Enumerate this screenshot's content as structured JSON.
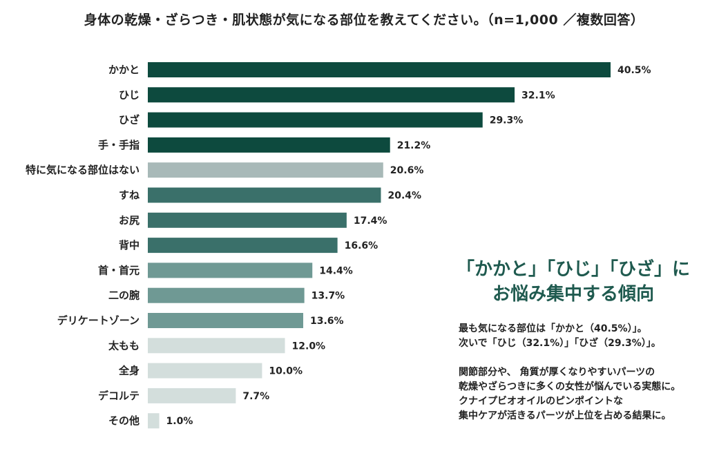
{
  "chart_data": {
    "type": "bar",
    "orientation": "horizontal",
    "title": "身体の乾燥・ざらつき・肌状態が気になる部位を教えてください。（n=1,000 ／複数回答）",
    "categories": [
      "かかと",
      "ひじ",
      "ひざ",
      "手・手指",
      "特に気になる部位はない",
      "すね",
      "お尻",
      "背中",
      "首・首元",
      "二の腕",
      "デリケートゾーン",
      "太もも",
      "全身",
      "デコルテ",
      "その他"
    ],
    "values": [
      40.5,
      32.1,
      29.3,
      21.2,
      20.6,
      20.4,
      17.4,
      16.6,
      14.4,
      13.7,
      13.6,
      12.0,
      10.0,
      7.7,
      1.0
    ],
    "value_labels": [
      "40.5%",
      "32.1%",
      "29.3%",
      "21.2%",
      "20.6%",
      "20.4%",
      "17.4%",
      "16.6%",
      "14.4%",
      "13.7%",
      "13.6%",
      "12.0%",
      "10.0%",
      "7.7%",
      "1.0%"
    ],
    "bar_colors": [
      "#0d4a3e",
      "#0d4a3e",
      "#0d4a3e",
      "#0d4a3e",
      "#a8b9b8",
      "#3a706a",
      "#3a706a",
      "#3a706a",
      "#6f9994",
      "#6f9994",
      "#6f9994",
      "#d3dedc",
      "#d3dedc",
      "#d3dedc",
      "#d3dedc"
    ],
    "xlabel": "",
    "ylabel": "",
    "xlim": [
      0,
      42
    ],
    "grid": false,
    "legend": "none"
  },
  "callout": {
    "line1": "「かかと」「ひじ」「ひざ」に",
    "line2": "お悩み集中する傾向"
  },
  "note": {
    "p1_line1": "最も気になる部位は「かかと（40.5%）」。",
    "p1_line2": "次いで「ひじ（32.1%）」「ひざ（29.3%）」。",
    "p2_line1": "関節部分や、 角質が厚くなりやすいパーツの",
    "p2_line2": "乾燥やざらつきに多くの女性が悩んでいる実態に。",
    "p2_line3": "クナイプビオオイルのピンポイントな",
    "p2_line4": "集中ケアが活きるパーツが上位を占める結果に。"
  }
}
